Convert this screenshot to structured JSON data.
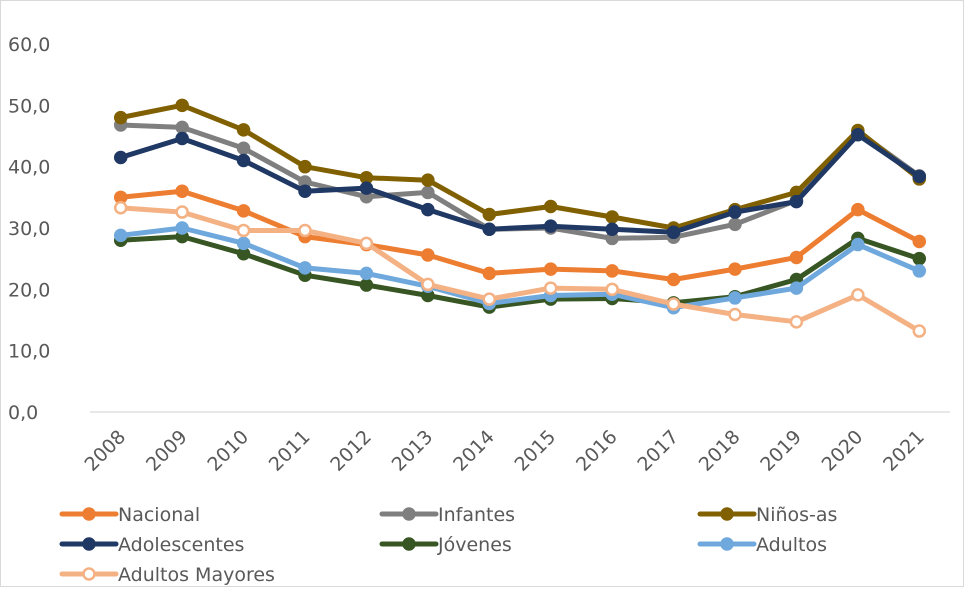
{
  "chart_data": {
    "type": "line",
    "title": "",
    "xlabel": "",
    "ylabel": "",
    "ylim": [
      0,
      60
    ],
    "yticks": [
      "0,0",
      "10,0",
      "20,0",
      "30,0",
      "40,0",
      "50,0",
      "60,0"
    ],
    "grid": false,
    "legend_position": "bottom",
    "categories": [
      "2008",
      "2009",
      "2010",
      "2011",
      "2012",
      "2013",
      "2014",
      "2015",
      "2016",
      "2017",
      "2018",
      "2019",
      "2020",
      "2021"
    ],
    "series": [
      {
        "name": "Nacional",
        "color": "#ED7D31",
        "marker": "filled",
        "values": [
          35.0,
          36.0,
          32.8,
          28.6,
          27.3,
          25.6,
          22.6,
          23.3,
          23.0,
          21.6,
          23.3,
          25.2,
          33.0,
          27.8
        ]
      },
      {
        "name": "Infantes",
        "color": "#7F7F7F",
        "marker": "filled",
        "values": [
          46.8,
          46.4,
          43.0,
          37.5,
          35.1,
          35.8,
          29.8,
          30.0,
          28.3,
          28.5,
          30.6,
          34.5,
          45.7,
          38.5
        ]
      },
      {
        "name": "Niños-as",
        "color": "#806000",
        "marker": "filled",
        "values": [
          48.0,
          50.0,
          46.0,
          40.0,
          38.2,
          37.8,
          32.2,
          33.5,
          31.8,
          30.0,
          33.0,
          35.8,
          45.9,
          38.0
        ]
      },
      {
        "name": "Adolescentes",
        "color": "#203864",
        "marker": "filled",
        "values": [
          41.5,
          44.6,
          41.0,
          36.0,
          36.5,
          33.0,
          29.8,
          30.3,
          29.8,
          29.3,
          32.6,
          34.3,
          45.2,
          38.4
        ]
      },
      {
        "name": "Jóvenes",
        "color": "#375623",
        "marker": "filled",
        "values": [
          28.0,
          28.6,
          25.8,
          22.3,
          20.7,
          19.0,
          17.1,
          18.4,
          18.5,
          17.8,
          18.8,
          21.6,
          28.3,
          25.0
        ]
      },
      {
        "name": "Adultos",
        "color": "#6FA8DC",
        "marker": "filled",
        "values": [
          28.8,
          30.0,
          27.5,
          23.5,
          22.6,
          20.5,
          17.7,
          19.0,
          19.2,
          17.0,
          18.6,
          20.2,
          27.3,
          23.0
        ]
      },
      {
        "name": "Adultos Mayores",
        "color": "#F4B183",
        "marker": "hollow",
        "values": [
          33.3,
          32.6,
          29.6,
          29.6,
          27.5,
          20.8,
          18.4,
          20.2,
          20.0,
          17.6,
          15.9,
          14.7,
          19.1,
          13.2
        ]
      }
    ]
  }
}
